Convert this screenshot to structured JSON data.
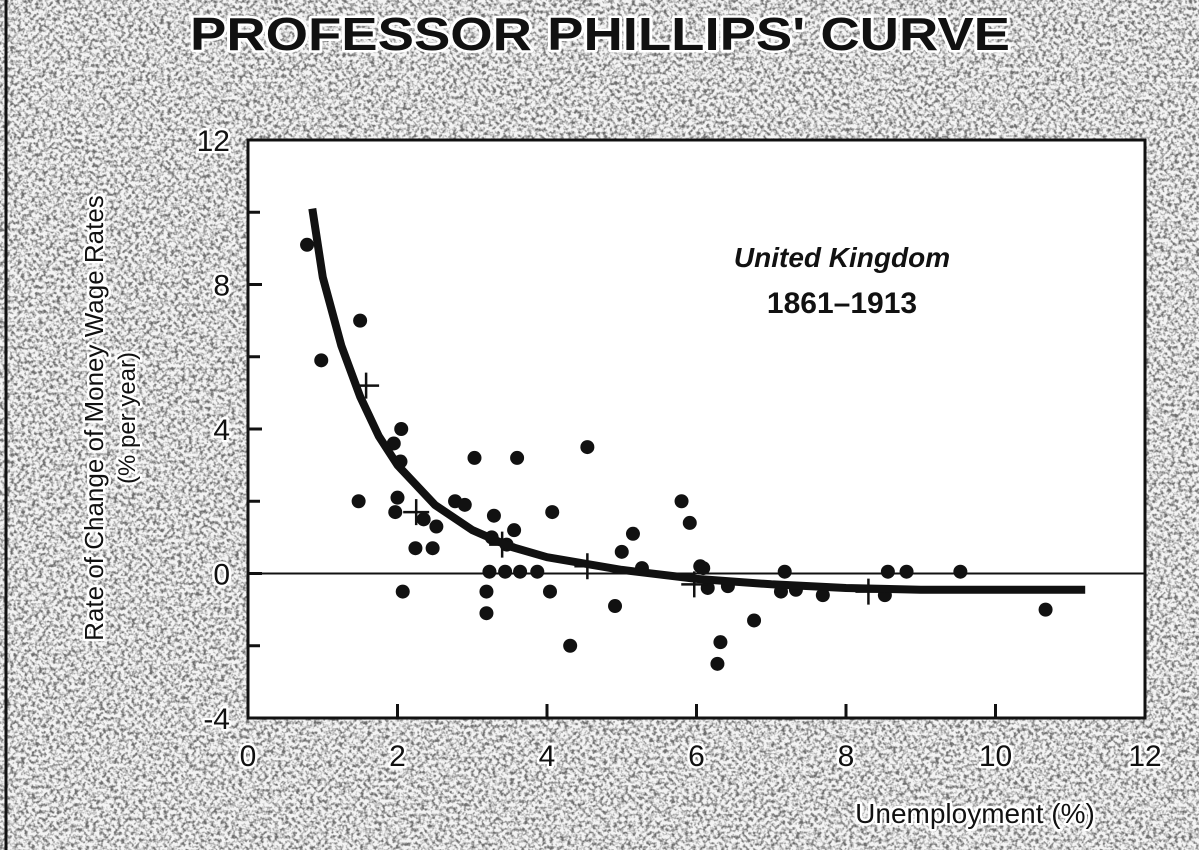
{
  "chart_data": {
    "type": "scatter",
    "title": "PROFESSOR PHILLIPS' CURVE",
    "annotation": [
      "United Kingdom",
      "1861–1913"
    ],
    "xlabel": "Unemployment (%)",
    "ylabel": [
      "Rate of Change of Money Wage Rates",
      "(% per year)"
    ],
    "xlim": [
      0,
      12
    ],
    "ylim": [
      -4,
      12
    ],
    "xticks": [
      0,
      2,
      4,
      6,
      8,
      10,
      12
    ],
    "yticks": [
      -4,
      0,
      4,
      8,
      12
    ],
    "yticks_minor": [
      -2,
      2,
      6,
      10
    ],
    "reference_line": 0,
    "series": [
      {
        "marker": "dot",
        "color": "#111111",
        "x": [
          0.79,
          0.98,
          1.5,
          1.48,
          1.95,
          2.05,
          2.04,
          2.0,
          1.97,
          2.07,
          2.24,
          2.47,
          2.52,
          2.35,
          2.77,
          2.9,
          3.03,
          3.19,
          3.19,
          3.23,
          3.29,
          3.26,
          3.44,
          3.46,
          3.56,
          3.6,
          3.64,
          3.87,
          4.04,
          4.07,
          4.31,
          4.54,
          4.91,
          5.0,
          5.15,
          5.27,
          5.8,
          5.91,
          6.05,
          6.09,
          6.15,
          6.32,
          6.28,
          6.42,
          6.77,
          7.18,
          7.13,
          7.33,
          7.69,
          8.56,
          8.52,
          8.81,
          9.53,
          10.67
        ],
        "y": [
          9.1,
          5.9,
          7.0,
          2.0,
          3.6,
          4.0,
          3.1,
          2.1,
          1.7,
          -0.5,
          0.7,
          0.7,
          1.3,
          1.5,
          2.0,
          1.9,
          3.2,
          -1.1,
          -0.5,
          0.05,
          1.6,
          1.0,
          0.05,
          0.8,
          1.2,
          3.2,
          0.05,
          0.05,
          -0.5,
          1.7,
          -2.0,
          3.5,
          -0.9,
          0.6,
          1.1,
          0.15,
          2.0,
          1.4,
          0.2,
          0.15,
          -0.4,
          -1.9,
          -2.5,
          -0.35,
          -1.3,
          0.05,
          -0.5,
          -0.45,
          -0.6,
          0.05,
          -0.6,
          0.05,
          0.05,
          -1.0
        ]
      },
      {
        "marker": "cross",
        "color": "#111111",
        "x": [
          1.58,
          2.25,
          3.4,
          4.54,
          5.97,
          8.3
        ],
        "y": [
          5.2,
          1.7,
          0.8,
          0.2,
          -0.3,
          -0.5
        ]
      },
      {
        "marker": "line",
        "color": "#111111",
        "x": [
          0.86,
          1.0,
          1.25,
          1.5,
          1.75,
          2.0,
          2.5,
          3.0,
          3.5,
          4.0,
          5.0,
          6.0,
          7.0,
          8.0,
          9.0,
          11.2
        ],
        "y": [
          10.1,
          8.2,
          6.3,
          4.9,
          3.8,
          3.0,
          1.9,
          1.2,
          0.75,
          0.45,
          0.1,
          -0.15,
          -0.3,
          -0.4,
          -0.45,
          -0.45
        ]
      }
    ]
  }
}
